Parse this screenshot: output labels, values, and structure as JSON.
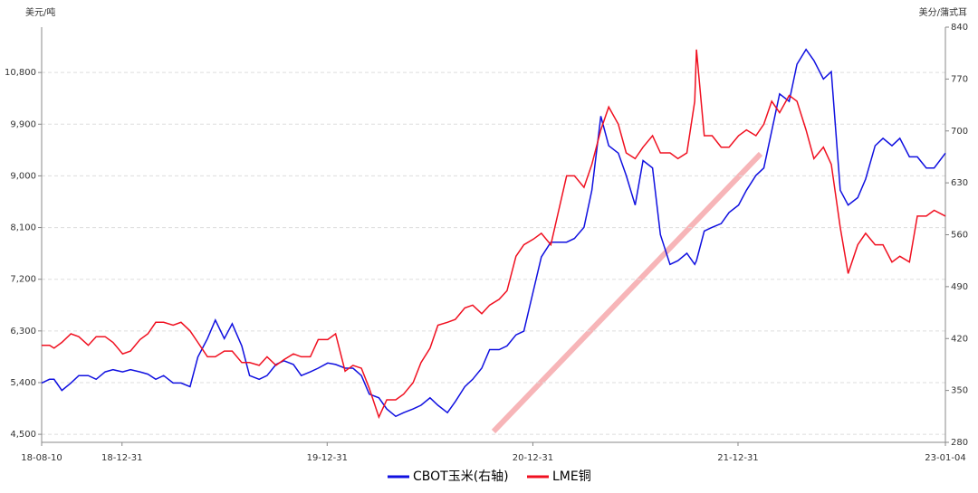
{
  "chart_data": {
    "type": "line",
    "y_label": "美元/吨",
    "y2_label": "美分/蒲式耳",
    "x": [
      "18-08-10",
      "18-08-24",
      "18-09-01",
      "18-09-15",
      "18-10-01",
      "18-10-15",
      "18-11-01",
      "18-11-15",
      "18-12-01",
      "18-12-15",
      "19-01-01",
      "19-01-15",
      "19-02-01",
      "19-02-15",
      "19-03-01",
      "19-03-15",
      "19-04-01",
      "19-04-15",
      "19-05-01",
      "19-05-15",
      "19-06-01",
      "19-06-15",
      "19-07-01",
      "19-07-15",
      "19-08-01",
      "19-08-15",
      "19-09-01",
      "19-09-15",
      "19-10-01",
      "19-10-15",
      "19-11-01",
      "19-11-15",
      "19-12-01",
      "19-12-15",
      "20-01-01",
      "20-01-15",
      "20-02-01",
      "20-02-15",
      "20-03-01",
      "20-03-15",
      "20-04-01",
      "20-04-15",
      "20-05-01",
      "20-05-15",
      "20-06-01",
      "20-06-15",
      "20-07-01",
      "20-07-15",
      "20-08-01",
      "20-08-15",
      "20-09-01",
      "20-09-15",
      "20-10-01",
      "20-10-15",
      "20-11-01",
      "20-11-15",
      "20-12-01",
      "20-12-15",
      "21-01-01",
      "21-01-15",
      "21-02-01",
      "21-02-15",
      "21-03-01",
      "21-03-15",
      "21-04-01",
      "21-04-15",
      "21-05-01",
      "21-05-15",
      "21-06-01",
      "21-06-15",
      "21-07-01",
      "21-07-15",
      "21-08-01",
      "21-08-15",
      "21-09-01",
      "21-09-15",
      "21-10-01",
      "21-10-15",
      "21-10-18",
      "21-11-01",
      "21-11-15",
      "21-12-01",
      "21-12-15",
      "22-01-01",
      "22-01-15",
      "22-02-01",
      "22-02-15",
      "22-03-01",
      "22-03-15",
      "22-04-01",
      "22-04-15",
      "22-05-01",
      "22-05-15",
      "22-06-01",
      "22-06-15",
      "22-07-01",
      "22-07-15",
      "22-08-01",
      "22-08-15",
      "22-09-01",
      "22-09-15",
      "22-10-01",
      "22-10-15",
      "22-11-01",
      "22-11-15",
      "22-12-01",
      "22-12-15",
      "23-01-04"
    ],
    "series": [
      {
        "name": "CBOT玉米(右轴)",
        "color": "#1010e0",
        "axis": "y2",
        "values": [
          360,
          365,
          365,
          350,
          360,
          370,
          370,
          365,
          375,
          378,
          375,
          378,
          375,
          372,
          365,
          370,
          360,
          360,
          355,
          395,
          420,
          445,
          420,
          440,
          410,
          370,
          365,
          370,
          385,
          390,
          385,
          370,
          375,
          380,
          387,
          385,
          380,
          380,
          370,
          345,
          340,
          325,
          315,
          320,
          325,
          330,
          340,
          330,
          320,
          335,
          355,
          365,
          380,
          405,
          405,
          410,
          425,
          430,
          485,
          530,
          550,
          550,
          550,
          555,
          570,
          620,
          720,
          680,
          670,
          640,
          600,
          660,
          650,
          560,
          520,
          525,
          535,
          520,
          525,
          565,
          570,
          575,
          590,
          600,
          620,
          640,
          650,
          700,
          750,
          740,
          790,
          810,
          795,
          770,
          780,
          620,
          600,
          610,
          635,
          680,
          690,
          680,
          690,
          665,
          665,
          650,
          650,
          670
        ]
      },
      {
        "name": "LME铜",
        "color": "#f01020",
        "values": [
          6050,
          6050,
          6000,
          6100,
          6250,
          6200,
          6050,
          6200,
          6200,
          6100,
          5900,
          5950,
          6150,
          6250,
          6450,
          6450,
          6400,
          6450,
          6300,
          6100,
          5850,
          5850,
          5950,
          5950,
          5750,
          5750,
          5700,
          5850,
          5700,
          5800,
          5900,
          5850,
          5850,
          6150,
          6150,
          6250,
          5600,
          5700,
          5650,
          5300,
          4800,
          5100,
          5100,
          5200,
          5400,
          5750,
          6000,
          6400,
          6450,
          6500,
          6700,
          6750,
          6600,
          6750,
          6850,
          7000,
          7600,
          7800,
          7900,
          8000,
          7800,
          8400,
          9000,
          9000,
          8800,
          9200,
          9800,
          10200,
          9900,
          9400,
          9300,
          9500,
          9700,
          9400,
          9400,
          9300,
          9400,
          10300,
          11200,
          9700,
          9700,
          9500,
          9500,
          9700,
          9800,
          9700,
          9900,
          10300,
          10100,
          10400,
          10300,
          9800,
          9300,
          9500,
          9200,
          8100,
          7300,
          7800,
          8000,
          7800,
          7800,
          7500,
          7600,
          7500,
          8300,
          8300,
          8400,
          8300
        ]
      }
    ],
    "xlim": [
      "18-08-10",
      "23-01-04"
    ],
    "xticks": [
      "18-08-10",
      "18-12-31",
      "19-12-31",
      "20-12-31",
      "21-12-31",
      "23-01-04"
    ],
    "ylim": [
      4360,
      11590
    ],
    "yticks": [
      {
        "value": 4500,
        "label": "4,500"
      },
      {
        "value": 5400,
        "label": "5,400"
      },
      {
        "value": 6300,
        "label": "6,300"
      },
      {
        "value": 7200,
        "label": "7,200"
      },
      {
        "value": 8100,
        "label": "8,100"
      },
      {
        "value": 9000,
        "label": "9,000"
      },
      {
        "value": 9900,
        "label": "9,900"
      },
      {
        "value": 10800,
        "label": "10,800"
      }
    ],
    "y2lim": [
      280,
      840
    ],
    "y2ticks": [
      280,
      350,
      420,
      490,
      560,
      630,
      700,
      770,
      840
    ],
    "grid": true
  }
}
